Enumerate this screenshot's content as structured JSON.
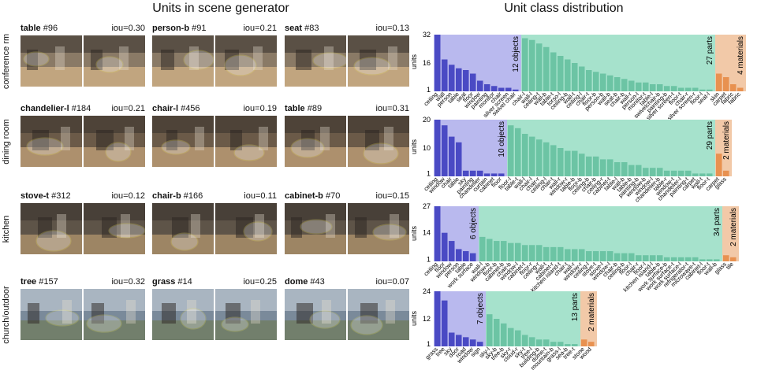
{
  "left_title": "Units in scene generator",
  "right_title": "Unit class distribution",
  "rows": [
    {
      "label": "conference rm",
      "scene": {
        "bg": "#8a7a66",
        "fg": "#d8b88a"
      },
      "cells": [
        {
          "name": "table",
          "id": "#96",
          "iou": "iou=0.30"
        },
        {
          "name": "person-b",
          "id": "#91",
          "iou": "iou=0.21"
        },
        {
          "name": "seat",
          "id": "#83",
          "iou": "iou=0.13"
        }
      ]
    },
    {
      "label": "dining room",
      "scene": {
        "bg": "#6b5a48",
        "fg": "#c9a77e"
      },
      "cells": [
        {
          "name": "chandelier-l",
          "id": "#184",
          "iou": "iou=0.21"
        },
        {
          "name": "chair-l",
          "id": "#456",
          "iou": "iou=0.19"
        },
        {
          "name": "table",
          "id": "#89",
          "iou": "iou=0.31"
        }
      ]
    },
    {
      "label": "kitchen",
      "scene": {
        "bg": "#5e5448",
        "fg": "#b89a70"
      },
      "cells": [
        {
          "name": "stove-t",
          "id": "#312",
          "iou": "iou=0.12"
        },
        {
          "name": "chair-b",
          "id": "#166",
          "iou": "iou=0.11"
        },
        {
          "name": "cabinet-b",
          "id": "#70",
          "iou": "iou=0.15"
        }
      ]
    },
    {
      "label": "church/outdoor",
      "scene": {
        "bg": "#7a8a9a",
        "fg": "#6f7a58"
      },
      "cells": [
        {
          "name": "tree",
          "id": "#157",
          "iou": "iou=0.32"
        },
        {
          "name": "grass",
          "id": "#14",
          "iou": "iou=0.25"
        },
        {
          "name": "dome",
          "id": "#43",
          "iou": "iou=0.07"
        }
      ]
    }
  ],
  "colors": {
    "objects": "#4a4ac4",
    "objects_bg": "#b9b9ee",
    "parts": "#6cc4a4",
    "parts_bg": "#a6e2cc",
    "materials": "#e89150",
    "materials_bg": "#f2c9a8",
    "outline": "#e8e060"
  },
  "chart_data": [
    {
      "type": "bar",
      "ylabel": "units",
      "yticks": [
        1,
        16,
        32
      ],
      "objects": {
        "label": "12 objects",
        "categories": [
          "ceiling",
          "wall",
          "person",
          "table",
          "seat",
          "floor",
          "window",
          "painting",
          "monitor",
          "chair",
          "silver screen",
          "swivel chair"
        ],
        "values": [
          32,
          18,
          15,
          13,
          12,
          10,
          6,
          4,
          3,
          2,
          2,
          1
        ]
      },
      "parts": {
        "label": "27 parts",
        "categories": [
          "chair-l",
          "wall-l",
          "ceiling-t",
          "wall-b",
          "table-t",
          "torso-l",
          "ceiling-b",
          "wall-t",
          "ceiling-l",
          "chair-t",
          "floor-b",
          "person-b",
          "wall-b",
          "seat-b",
          "chair-b",
          "wall-r",
          "person-l",
          "monitor-t",
          "table-l",
          "swivelchair-b",
          "painting-b",
          "silver screen-t",
          "floor-t",
          "chair-r",
          "silver screen-r",
          "floor-l",
          "seat-l"
        ],
        "values": [
          30,
          29,
          27,
          25,
          22,
          20,
          18,
          16,
          14,
          12,
          11,
          10,
          9,
          8,
          7,
          6,
          5,
          5,
          4,
          4,
          3,
          3,
          2,
          2,
          2,
          1,
          1
        ]
      },
      "materials": {
        "label": "4 materials",
        "categories": [
          "skin",
          "carpet",
          "fabric",
          "fabric"
        ],
        "values": [
          10,
          8,
          4,
          2
        ]
      }
    },
    {
      "type": "bar",
      "ylabel": "units",
      "yticks": [
        1,
        10,
        20
      ],
      "objects": {
        "label": "10 objects",
        "categories": [
          "ceiling",
          "window",
          "chair",
          "table",
          "sky",
          "painting",
          "chandelier",
          "curtain",
          "cabinet",
          "floor"
        ],
        "values": [
          20,
          18,
          14,
          12,
          2,
          2,
          2,
          1,
          1,
          1
        ]
      },
      "parts": {
        "label": "29 parts",
        "categories": [
          "floor-l",
          "table-t",
          "wall-l",
          "chair-l",
          "chair-r",
          "ceiling-l",
          "chair-t",
          "wall-r",
          "window-r",
          "table-b",
          "floor-b",
          "ceiling-b",
          "chair-b",
          "ceiling-r",
          "cabinet-t",
          "table-l",
          "wall-b",
          "table-b",
          "painting-b",
          "window-b",
          "window-l",
          "chandelier-b",
          "table-r",
          "window-t",
          "chandelier-l",
          "painting-t",
          "carpet",
          "wall-t",
          "floor-t"
        ],
        "values": [
          18,
          17,
          15,
          14,
          13,
          12,
          11,
          10,
          9,
          9,
          8,
          7,
          7,
          6,
          6,
          5,
          5,
          4,
          4,
          3,
          3,
          3,
          2,
          2,
          2,
          2,
          1,
          1,
          1
        ]
      },
      "materials": {
        "label": "2 materials",
        "categories": [
          "carpet",
          "glass"
        ],
        "values": [
          8,
          2
        ]
      }
    },
    {
      "type": "bar",
      "ylabel": "units",
      "yticks": [
        1,
        14,
        27
      ],
      "objects": {
        "label": "6 objects",
        "categories": [
          "ceiling",
          "floor",
          "window",
          "person",
          "table",
          "work surface"
        ],
        "values": [
          27,
          14,
          10,
          6,
          5,
          4
        ]
      },
      "parts": {
        "label": "34 parts",
        "categories": [
          "wall-l",
          "window-b",
          "floor-b",
          "cabinet-b",
          "chair-b",
          "window-l",
          "cabinet-t",
          "floor-r",
          "ceiling-r",
          "wall-t",
          "cabinet-r",
          "kitchen island-t",
          "chair-t",
          "wall-r",
          "window-r",
          "ceiling-l",
          "stove-t",
          "stove-l",
          "window-l",
          "chair-b",
          "ceiling-b",
          "floor-l",
          "chair-r",
          "floor-l",
          "kitchen island-l",
          "table-b",
          "work surface-b",
          "work surface-t",
          "work surface-l",
          "refrigerator-t",
          "microwave-t",
          "cabinet-l",
          "floor-t",
          "wall-b"
        ],
        "values": [
          12,
          11,
          10,
          10,
          9,
          9,
          8,
          8,
          8,
          7,
          7,
          7,
          6,
          6,
          6,
          5,
          5,
          5,
          5,
          4,
          4,
          4,
          3,
          3,
          3,
          3,
          2,
          2,
          2,
          2,
          2,
          1,
          1,
          1
        ]
      },
      "materials": {
        "label": "2 materials",
        "categories": [
          "glass",
          "tile"
        ],
        "values": [
          3,
          2
        ]
      }
    },
    {
      "type": "bar",
      "ylabel": "units",
      "yticks": [
        1,
        12,
        24
      ],
      "objects": {
        "label": "7 objects",
        "categories": [
          "grass",
          "tree",
          "sky",
          "door",
          "road",
          "window",
          "sign"
        ],
        "values": [
          24,
          20,
          6,
          5,
          4,
          3,
          2
        ]
      },
      "parts": {
        "label": "13 parts",
        "categories": [
          "sky-l",
          "sky-b",
          "tree-b",
          "sky-r",
          "cloud-r",
          "sky-t",
          "tree-l",
          "building-b",
          "dome-t",
          "mountain-b",
          "grass-l",
          "sea-b",
          "tree-t"
        ],
        "values": [
          14,
          12,
          10,
          8,
          7,
          5,
          4,
          3,
          3,
          2,
          2,
          1,
          1
        ]
      },
      "materials": {
        "label": "2 materials",
        "categories": [
          "stone",
          "wood"
        ],
        "values": [
          3,
          2
        ]
      }
    }
  ]
}
